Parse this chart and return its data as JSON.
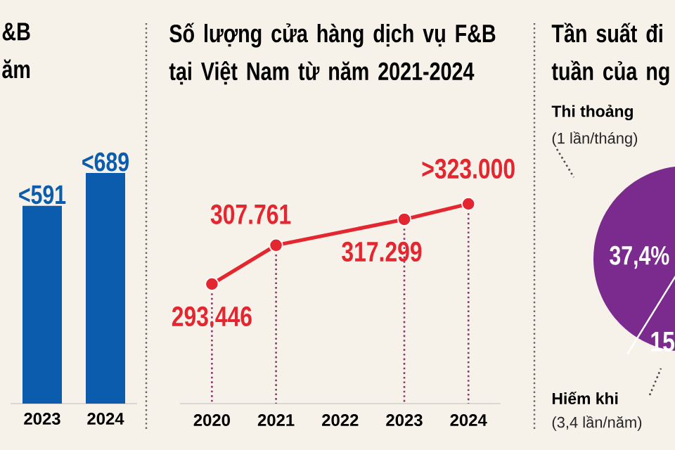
{
  "chart_data": [
    {
      "type": "bar",
      "title": "&B",
      "subtitle": "ăm",
      "categories": [
        "2023",
        "2024"
      ],
      "values": [
        591,
        689
      ],
      "value_labels": [
        "<591",
        "<689"
      ],
      "color": "#0b5cad"
    },
    {
      "type": "line",
      "title": "Số lượng cửa hàng dịch vụ F&B tại Việt Nam từ năm 2021-2024",
      "categories": [
        "2020",
        "2021",
        "2022",
        "2023",
        "2024"
      ],
      "values": [
        293446,
        307761,
        null,
        317299,
        323000
      ],
      "value_labels": [
        "293.446",
        "307.761",
        null,
        "317.299",
        ">323.000"
      ],
      "color": "#e32630",
      "marker": "circle",
      "grid": "x",
      "tick_labels": "x"
    },
    {
      "type": "other",
      "title": "Tần suất đi",
      "subtitle": "tuần của ng",
      "color": "#7b2a8e",
      "annotations": [
        "Thi thoảng",
        "(1 lần/tháng)",
        "37,4%",
        "15",
        "Hiếm khi",
        "(3,4 lần/năm)"
      ]
    }
  ]
}
